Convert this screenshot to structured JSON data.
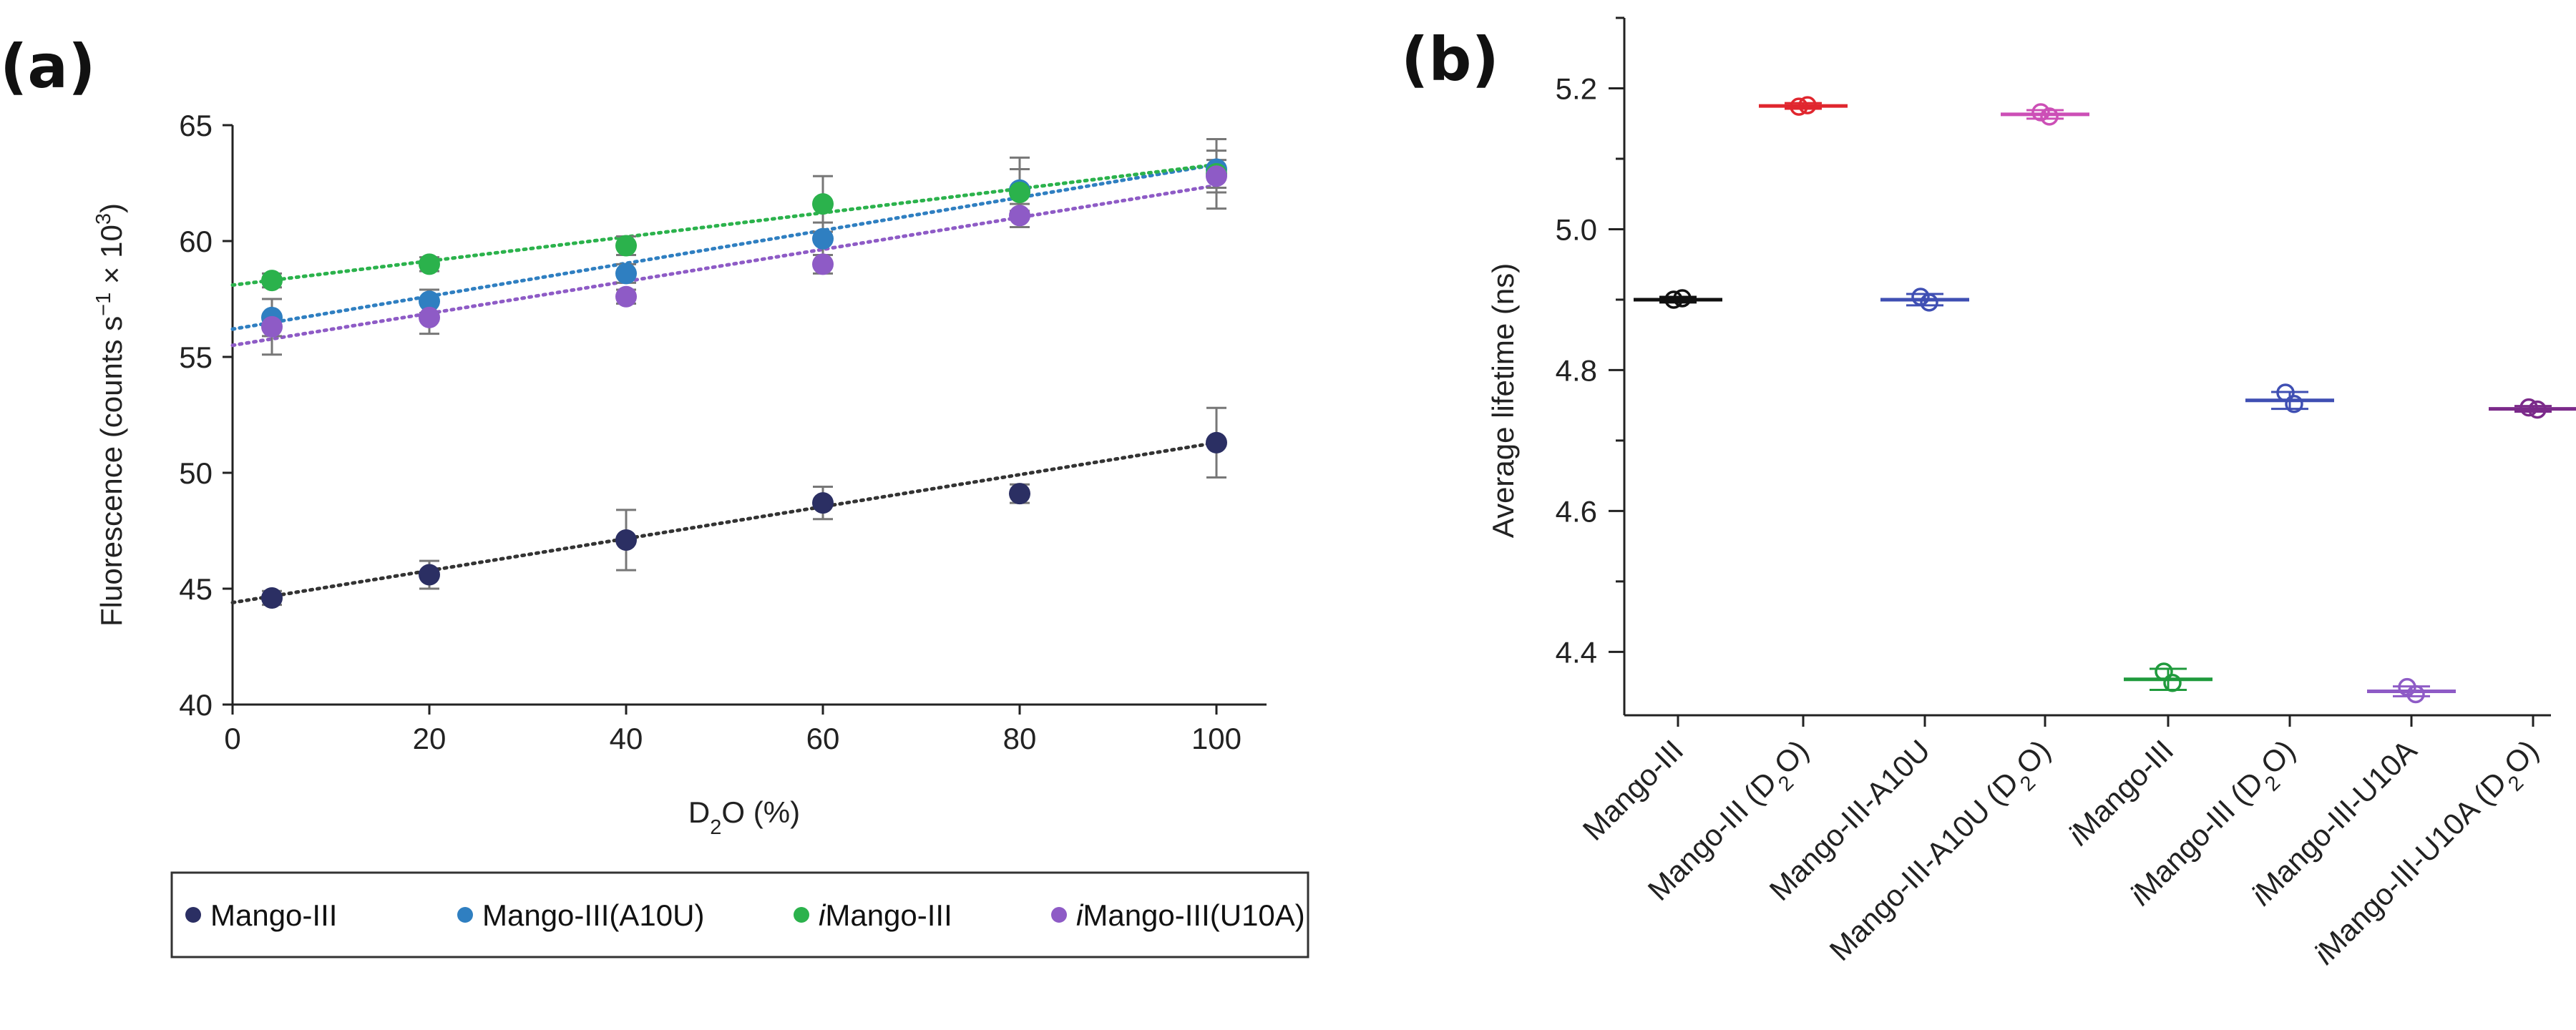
{
  "panels": {
    "a_label": "(a)",
    "b_label": "(b)"
  },
  "chart_data": [
    {
      "type": "scatter",
      "panel": "(a)",
      "xlabel": "D2O (%)",
      "ylabel": "Fluorescence (counts s−1 × 103)",
      "xlim": [
        0,
        105
      ],
      "ylim": [
        40,
        65
      ],
      "xticks": [
        0,
        20,
        40,
        60,
        80,
        100
      ],
      "yticks": [
        40,
        45,
        50,
        55,
        60,
        65
      ],
      "grid": false,
      "legend_position": "bottom",
      "series": [
        {
          "name": "Mango-III",
          "color": "#2b2f63",
          "fit_color": "#333333",
          "x": [
            4,
            20,
            40,
            60,
            80,
            100
          ],
          "y": [
            44.6,
            45.6,
            47.1,
            48.7,
            49.1,
            51.3
          ],
          "err": [
            0.3,
            0.6,
            1.3,
            0.7,
            0.4,
            1.5
          ],
          "fit": [
            44.4,
            51.3
          ]
        },
        {
          "name": "Mango-III(A10U)",
          "color": "#2f7fc1",
          "fit_color": "#2f7fc1",
          "x": [
            4,
            20,
            40,
            60,
            80,
            100
          ],
          "y": [
            56.7,
            57.4,
            58.6,
            60.1,
            62.2,
            63.1
          ],
          "err": [
            0.8,
            0.5,
            0.4,
            0.7,
            0.9,
            0.8
          ],
          "fit": [
            56.2,
            63.3
          ]
        },
        {
          "name": "iMango-III",
          "color": "#2bb24c",
          "fit_color": "#2bb24c",
          "x": [
            4,
            20,
            40,
            60,
            80,
            100
          ],
          "y": [
            58.3,
            59.0,
            59.8,
            61.6,
            62.1,
            62.9
          ],
          "err": [
            0.3,
            0.3,
            0.4,
            1.2,
            1.5,
            1.5
          ],
          "fit": [
            58.1,
            63.3
          ]
        },
        {
          "name": "iMango-III(U10A)",
          "color": "#8e5bc6",
          "fit_color": "#8e5bc6",
          "x": [
            4,
            20,
            40,
            60,
            80,
            100
          ],
          "y": [
            56.3,
            56.7,
            57.6,
            59.0,
            61.1,
            62.8
          ],
          "err": [
            1.2,
            0.7,
            0.3,
            0.4,
            0.5,
            0.7
          ],
          "fit": [
            55.5,
            62.4
          ]
        }
      ]
    },
    {
      "type": "scatter",
      "panel": "(b)",
      "ylabel": "Average lifetime (ns)",
      "ylim": [
        4.31,
        5.3
      ],
      "yticks": [
        4.4,
        4.6,
        4.8,
        5.0,
        5.2
      ],
      "grid": false,
      "categories": [
        "Mango-III",
        "Mango-III (D2O)",
        "Mango-III-A10U",
        "Mango-III-A10U (D2O)",
        "iMango-III",
        "iMango-III (D2O)",
        "iMango-III-U10A",
        "iMango-III-U10A (D2O)"
      ],
      "values": [
        4.9,
        5.175,
        4.9,
        5.163,
        4.361,
        4.757,
        4.344,
        4.745
      ],
      "points": [
        [
          4.9,
          4.902
        ],
        [
          5.174,
          5.176
        ],
        [
          4.904,
          4.896
        ],
        [
          5.166,
          5.16
        ],
        [
          4.372,
          4.356
        ],
        [
          4.768,
          4.752
        ],
        [
          4.35,
          4.34
        ],
        [
          4.747,
          4.744
        ]
      ],
      "err": [
        0.004,
        0.004,
        0.008,
        0.006,
        0.015,
        0.012,
        0.007,
        0.004
      ],
      "colors": [
        "#111111",
        "#e0262e",
        "#3f4fb3",
        "#cc4fb6",
        "#1f9a3c",
        "#3f4fb3",
        "#8e5bc6",
        "#7b2a8a"
      ]
    }
  ]
}
